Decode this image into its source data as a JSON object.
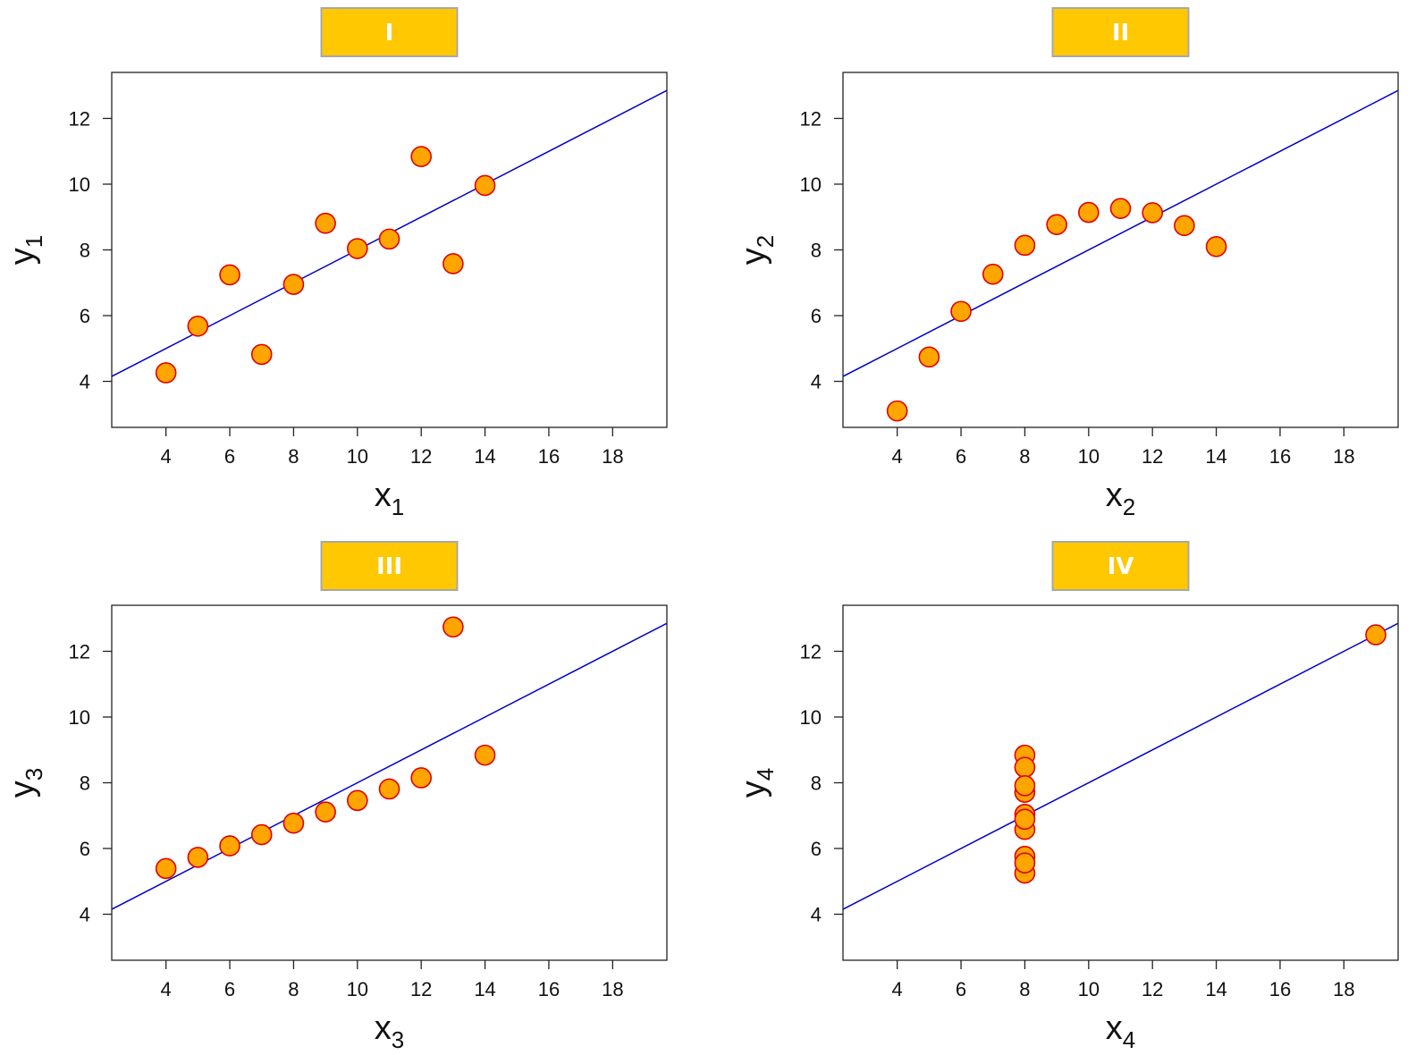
{
  "chart_data": [
    {
      "type": "scatter",
      "title": "I",
      "xlabel": "x",
      "xlabel_sub": "1",
      "ylabel": "y",
      "ylabel_sub": "1",
      "xlim": [
        2.3,
        19.7
      ],
      "ylim": [
        2.6,
        13.4
      ],
      "xticks": [
        4,
        6,
        8,
        10,
        12,
        14,
        16,
        18
      ],
      "yticks": [
        4,
        6,
        8,
        10,
        12
      ],
      "x": [
        10,
        8,
        13,
        9,
        11,
        14,
        6,
        4,
        12,
        7,
        5
      ],
      "y": [
        8.04,
        6.95,
        7.58,
        8.81,
        8.33,
        9.96,
        7.24,
        4.26,
        10.84,
        4.82,
        5.68
      ],
      "fit_line": {
        "intercept": 3.0,
        "slope": 0.5
      },
      "colors": {
        "marker_fill": "#FFA500",
        "marker_edge": "#e00000",
        "line": "#0000cc",
        "title_box": "#FFC800"
      }
    },
    {
      "type": "scatter",
      "title": "II",
      "xlabel": "x",
      "xlabel_sub": "2",
      "ylabel": "y",
      "ylabel_sub": "2",
      "xlim": [
        2.3,
        19.7
      ],
      "ylim": [
        2.6,
        13.4
      ],
      "xticks": [
        4,
        6,
        8,
        10,
        12,
        14,
        16,
        18
      ],
      "yticks": [
        4,
        6,
        8,
        10,
        12
      ],
      "x": [
        10,
        8,
        13,
        9,
        11,
        14,
        6,
        4,
        12,
        7,
        5
      ],
      "y": [
        9.14,
        8.14,
        8.74,
        8.77,
        9.26,
        8.1,
        6.13,
        3.1,
        9.13,
        7.26,
        4.74
      ],
      "fit_line": {
        "intercept": 3.0,
        "slope": 0.5
      },
      "colors": {
        "marker_fill": "#FFA500",
        "marker_edge": "#e00000",
        "line": "#0000cc",
        "title_box": "#FFC800"
      }
    },
    {
      "type": "scatter",
      "title": "III",
      "xlabel": "x",
      "xlabel_sub": "3",
      "ylabel": "y",
      "ylabel_sub": "3",
      "xlim": [
        2.3,
        19.7
      ],
      "ylim": [
        2.6,
        13.4
      ],
      "xticks": [
        4,
        6,
        8,
        10,
        12,
        14,
        16,
        18
      ],
      "yticks": [
        4,
        6,
        8,
        10,
        12
      ],
      "x": [
        10,
        8,
        13,
        9,
        11,
        14,
        6,
        4,
        12,
        7,
        5
      ],
      "y": [
        7.46,
        6.77,
        12.74,
        7.11,
        7.81,
        8.84,
        6.08,
        5.39,
        8.15,
        6.42,
        5.73
      ],
      "fit_line": {
        "intercept": 3.0,
        "slope": 0.5
      },
      "colors": {
        "marker_fill": "#FFA500",
        "marker_edge": "#e00000",
        "line": "#0000cc",
        "title_box": "#FFC800"
      }
    },
    {
      "type": "scatter",
      "title": "IV",
      "xlabel": "x",
      "xlabel_sub": "4",
      "ylabel": "y",
      "ylabel_sub": "4",
      "xlim": [
        2.3,
        19.7
      ],
      "ylim": [
        2.6,
        13.4
      ],
      "xticks": [
        4,
        6,
        8,
        10,
        12,
        14,
        16,
        18
      ],
      "yticks": [
        4,
        6,
        8,
        10,
        12
      ],
      "x": [
        8,
        8,
        8,
        8,
        8,
        8,
        8,
        19,
        8,
        8,
        8
      ],
      "y": [
        6.58,
        5.76,
        7.71,
        8.84,
        8.47,
        7.04,
        5.25,
        12.5,
        5.56,
        7.91,
        6.89
      ],
      "fit_line": {
        "intercept": 3.0,
        "slope": 0.5
      },
      "colors": {
        "marker_fill": "#FFA500",
        "marker_edge": "#e00000",
        "line": "#0000cc",
        "title_box": "#FFC800"
      }
    }
  ]
}
